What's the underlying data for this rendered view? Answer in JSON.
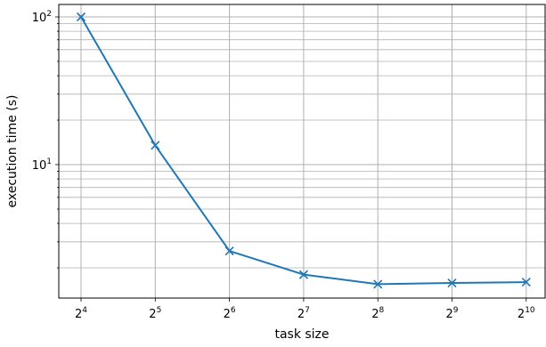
{
  "chart_data": {
    "type": "line",
    "title": "",
    "xlabel": "task size",
    "ylabel": "execution time (s)",
    "xscale": "log2",
    "yscale": "log10",
    "x": [
      16,
      32,
      64,
      128,
      256,
      512,
      1024
    ],
    "x_tick_labels": [
      {
        "base": "2",
        "exp": "4"
      },
      {
        "base": "2",
        "exp": "5"
      },
      {
        "base": "2",
        "exp": "6"
      },
      {
        "base": "2",
        "exp": "7"
      },
      {
        "base": "2",
        "exp": "8"
      },
      {
        "base": "2",
        "exp": "9"
      },
      {
        "base": "2",
        "exp": "10"
      }
    ],
    "y_major_ticks": [
      {
        "value": 10,
        "base": "10",
        "exp": "1"
      },
      {
        "value": 100,
        "base": "10",
        "exp": "2"
      }
    ],
    "ylim": [
      1.3,
      110
    ],
    "grid": "major and minor",
    "series": [
      {
        "color": "#1f77b4",
        "marker": "x",
        "values": [
          100,
          13.5,
          2.6,
          1.8,
          1.55,
          1.58,
          1.6
        ]
      }
    ]
  }
}
